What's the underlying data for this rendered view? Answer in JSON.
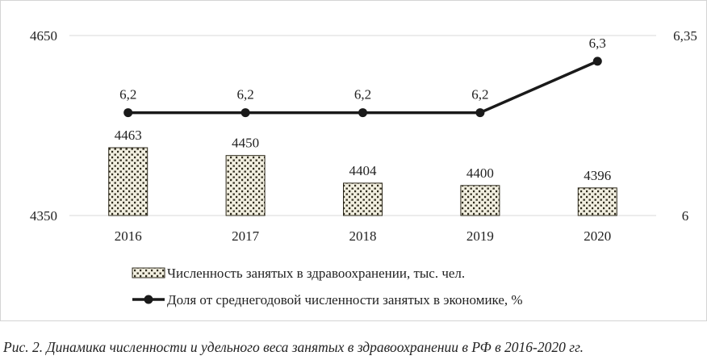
{
  "chart_data": {
    "type": "bar+line",
    "categories": [
      "2016",
      "2017",
      "2018",
      "2019",
      "2020"
    ],
    "bar_series": {
      "name": "Численность занятых в здравоохранении, тыс. чел.",
      "values": [
        4463,
        4450,
        4404,
        4400,
        4396
      ],
      "axis": "left"
    },
    "line_series": {
      "name": "Доля от среднегодовой численности занятых в экономике, %",
      "values": [
        6.2,
        6.2,
        6.2,
        6.2,
        6.3
      ],
      "value_labels": [
        "6,2",
        "6,2",
        "6,2",
        "6,2",
        "6,3"
      ],
      "axis": "right"
    },
    "y_left": {
      "range": [
        4350,
        4650
      ],
      "ticks": [
        "4350",
        "4650"
      ]
    },
    "y_right": {
      "range": [
        6,
        6.35
      ],
      "ticks": [
        "6",
        "6,35"
      ]
    },
    "grid": "horizontal",
    "legend_position": "bottom",
    "colors": {
      "bar_fill": "#f2efe0",
      "bar_pattern": "#2e2a1c",
      "line": "#1a1a1a",
      "grid": "#d9d9d9"
    }
  },
  "caption": "Рис. 2. Динамика численности и удельного веса занятых в здравоохранении в РФ в 2016-2020 гг."
}
